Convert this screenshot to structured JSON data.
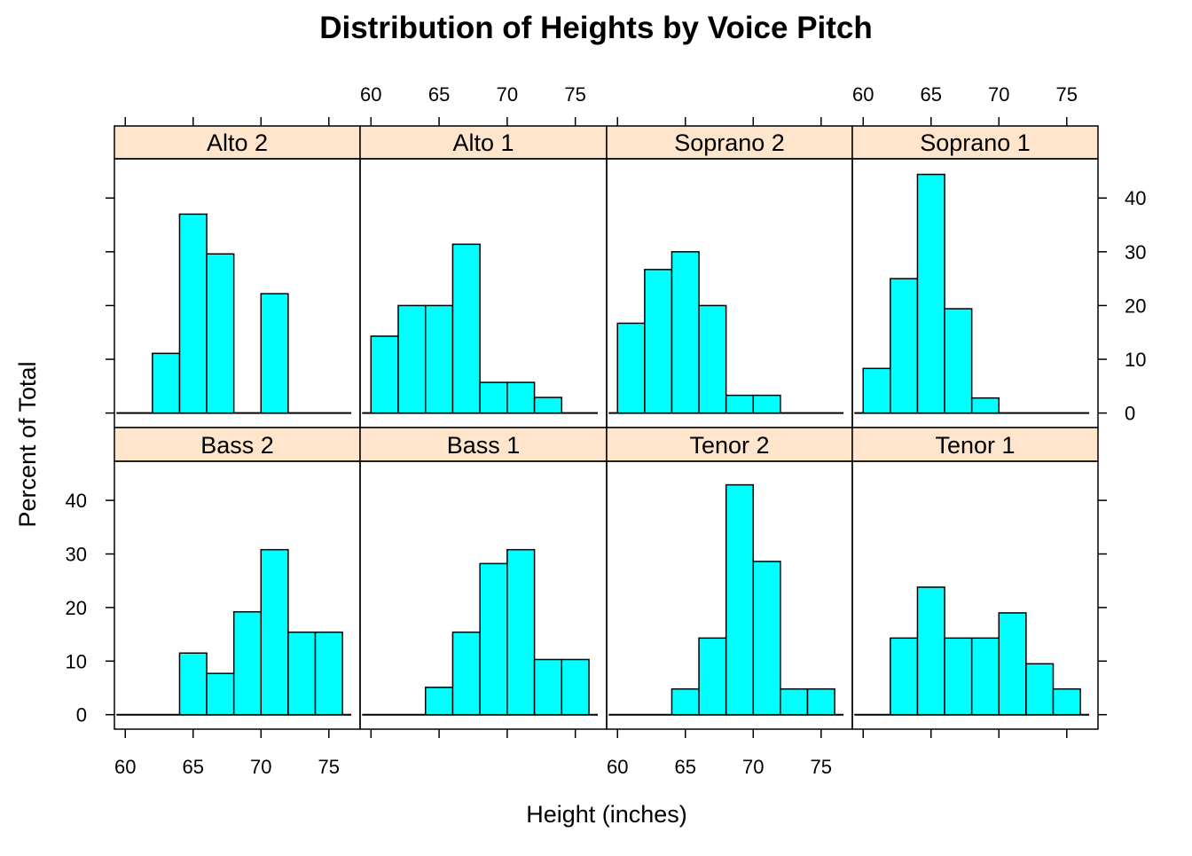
{
  "chart_data": {
    "type": "bar",
    "title": "Distribution of Heights by Voice Pitch",
    "xlabel": "Height (inches)",
    "ylabel": "Percent of Total",
    "xlim": [
      59.2,
      77.3
    ],
    "ylim": [
      -2.7,
      47.3
    ],
    "x_ticks": [
      60,
      65,
      70,
      75
    ],
    "y_ticks": [
      0,
      10,
      20,
      30,
      40
    ],
    "bin_edges": [
      60,
      62,
      64,
      66,
      68,
      70,
      72,
      74,
      76
    ],
    "grid": false,
    "legend": "none",
    "colors": {
      "bar_fill": "#00FFFF",
      "bar_stroke": "#000000",
      "strip_fill": "#FFE5CC",
      "frame": "#000000"
    },
    "panels": [
      {
        "name": "Alto 2",
        "row": "top",
        "values": [
          0,
          11.1,
          37.0,
          29.6,
          0,
          22.2,
          0,
          0
        ]
      },
      {
        "name": "Alto 1",
        "row": "top",
        "values": [
          14.3,
          20.0,
          20.0,
          31.4,
          5.7,
          5.7,
          2.9,
          0
        ]
      },
      {
        "name": "Soprano 2",
        "row": "top",
        "values": [
          16.7,
          26.7,
          30.0,
          20.0,
          3.3,
          3.3,
          0,
          0
        ]
      },
      {
        "name": "Soprano 1",
        "row": "top",
        "values": [
          8.3,
          25.0,
          44.4,
          19.4,
          2.8,
          0,
          0,
          0
        ]
      },
      {
        "name": "Bass 2",
        "row": "bottom",
        "values": [
          0,
          0,
          11.5,
          7.7,
          19.2,
          30.8,
          15.4,
          15.4
        ]
      },
      {
        "name": "Bass 1",
        "row": "bottom",
        "values": [
          0,
          0,
          5.1,
          15.4,
          28.2,
          30.8,
          10.3,
          10.3
        ]
      },
      {
        "name": "Tenor 2",
        "row": "bottom",
        "values": [
          0,
          0,
          4.8,
          14.3,
          42.9,
          28.6,
          4.8,
          4.8
        ]
      },
      {
        "name": "Tenor 1",
        "row": "bottom",
        "values": [
          0,
          14.3,
          23.8,
          14.3,
          14.3,
          19.0,
          9.5,
          4.8
        ]
      }
    ],
    "x_tick_labels_top_panels": [
      "Alto 1",
      "Soprano 1"
    ],
    "x_tick_labels_bottom_panels": [
      "Bass 2",
      "Tenor 2"
    ],
    "y_tick_labels_right_row": "top",
    "y_tick_labels_left_row": "bottom"
  }
}
